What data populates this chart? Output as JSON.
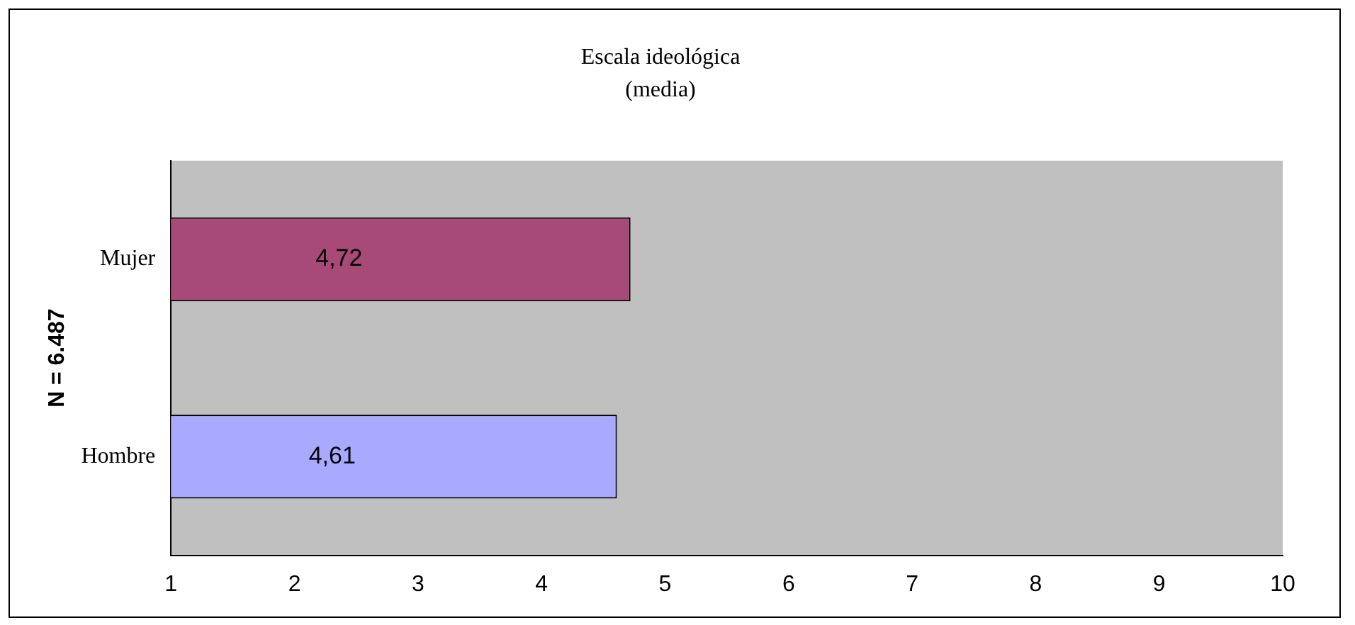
{
  "chart_data": {
    "type": "bar",
    "orientation": "horizontal",
    "title": "Escala ideológica",
    "subtitle": "(media)",
    "ylabel": "N = 6.487",
    "categories": [
      "Mujer",
      "Hombre"
    ],
    "values": [
      4.72,
      4.61
    ],
    "colors": [
      "#a84a78",
      "#a9a9ff"
    ],
    "value_labels": [
      "4,72",
      "4,61"
    ],
    "xlim": [
      1,
      10
    ],
    "xticks": [
      1,
      2,
      3,
      4,
      5,
      6,
      7,
      8,
      9,
      10
    ],
    "grid": false,
    "legend": false
  }
}
